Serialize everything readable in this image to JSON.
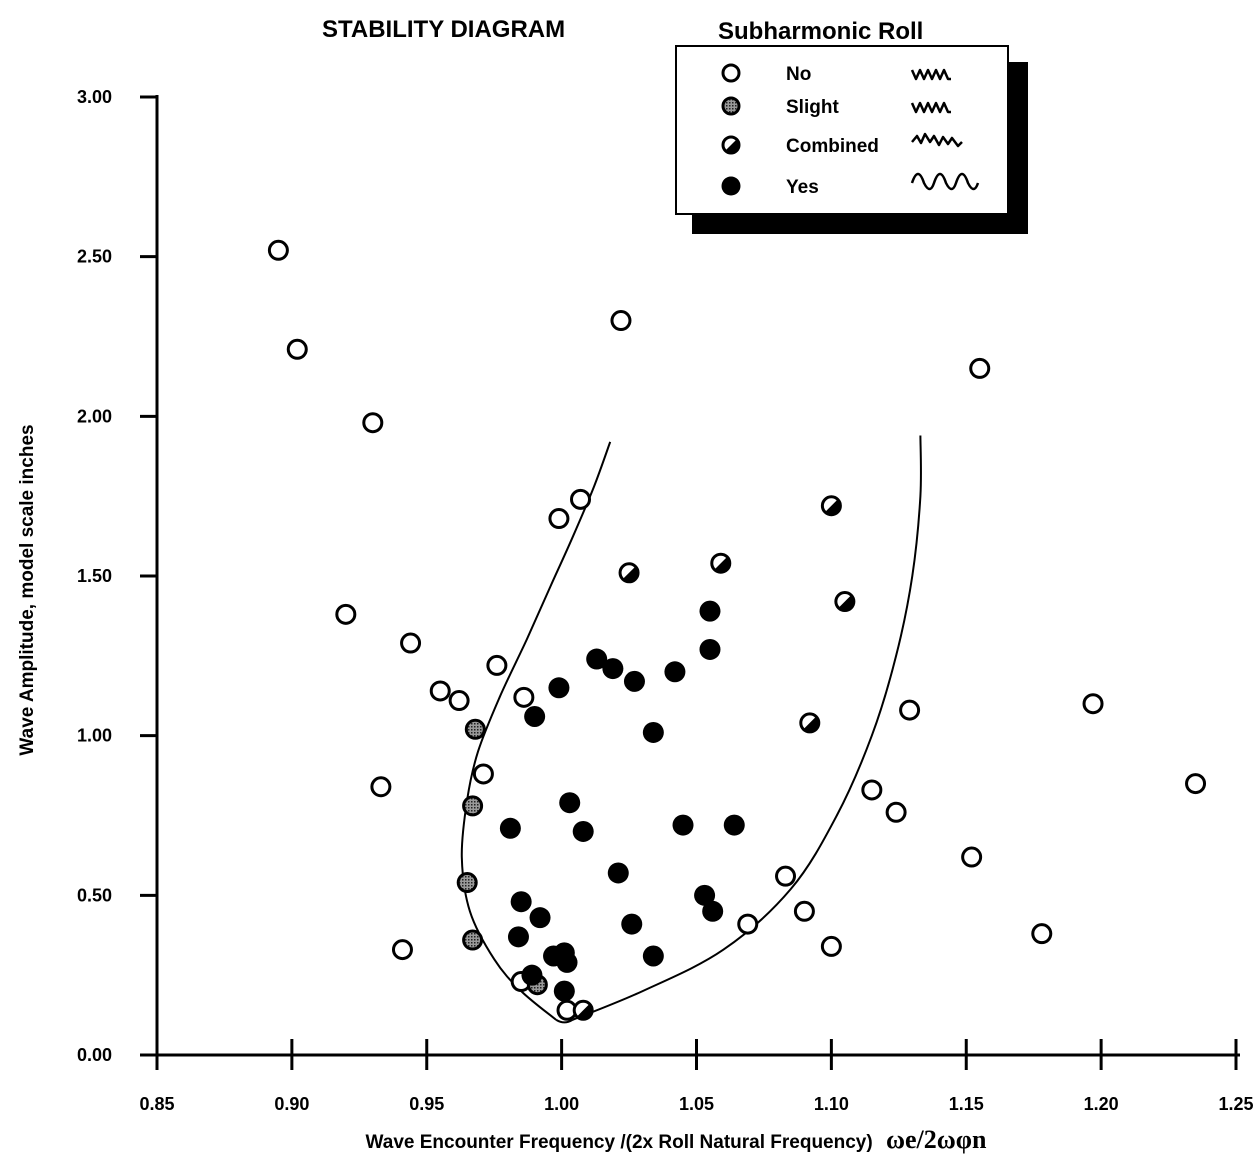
{
  "chart_data": {
    "type": "scatter",
    "title": "STABILITY DIAGRAM",
    "xlabel": "Wave Encounter Frequency /(2x Roll Natural Frequency)",
    "xlabel_symbol": "ωe/2ωφn",
    "ylabel": "Wave Amplitude,  model scale inches",
    "xlim": [
      0.85,
      1.25
    ],
    "ylim": [
      0.0,
      3.0
    ],
    "x_ticks": [
      "0.85",
      "0.90",
      "0.95",
      "1.00",
      "1.05",
      "1.10",
      "1.15",
      "1.20",
      "1.25"
    ],
    "y_ticks": [
      "0.00",
      "0.50",
      "1.00",
      "1.50",
      "2.00",
      "2.50",
      "3.00"
    ],
    "grid": false,
    "legend": {
      "title": "Subharmonic Roll",
      "placement": "top-right",
      "entries": [
        {
          "key": "no",
          "label": "No",
          "wave": "fast"
        },
        {
          "key": "slight",
          "label": "Slight",
          "wave": "fast"
        },
        {
          "key": "combined",
          "label": "Combined",
          "wave": "mixed"
        },
        {
          "key": "yes",
          "label": "Yes",
          "wave": "slow"
        }
      ]
    },
    "series": [
      {
        "name": "No",
        "marker": "open-circle",
        "points": [
          [
            0.895,
            2.52
          ],
          [
            0.902,
            2.21
          ],
          [
            0.93,
            1.98
          ],
          [
            1.022,
            2.3
          ],
          [
            1.155,
            2.15
          ],
          [
            0.92,
            1.38
          ],
          [
            0.944,
            1.29
          ],
          [
            0.955,
            1.14
          ],
          [
            0.962,
            1.11
          ],
          [
            0.976,
            1.22
          ],
          [
            0.986,
            1.12
          ],
          [
            0.999,
            1.68
          ],
          [
            1.007,
            1.74
          ],
          [
            0.971,
            0.88
          ],
          [
            0.933,
            0.84
          ],
          [
            0.941,
            0.33
          ],
          [
            0.985,
            0.23
          ],
          [
            1.002,
            0.14
          ],
          [
            1.069,
            0.41
          ],
          [
            1.083,
            0.56
          ],
          [
            1.09,
            0.45
          ],
          [
            1.1,
            0.34
          ],
          [
            1.115,
            0.83
          ],
          [
            1.124,
            0.76
          ],
          [
            1.129,
            1.08
          ],
          [
            1.152,
            0.62
          ],
          [
            1.178,
            0.38
          ],
          [
            1.197,
            1.1
          ],
          [
            1.235,
            0.85
          ]
        ]
      },
      {
        "name": "Slight",
        "marker": "hatched-circle",
        "points": [
          [
            0.968,
            1.02
          ],
          [
            0.967,
            0.78
          ],
          [
            0.965,
            0.54
          ],
          [
            0.967,
            0.36
          ],
          [
            0.991,
            0.22
          ]
        ]
      },
      {
        "name": "Combined",
        "marker": "half-filled-circle",
        "points": [
          [
            1.025,
            1.51
          ],
          [
            1.059,
            1.54
          ],
          [
            1.1,
            1.72
          ],
          [
            1.105,
            1.42
          ],
          [
            1.092,
            1.04
          ],
          [
            1.008,
            0.14
          ]
        ]
      },
      {
        "name": "Yes",
        "marker": "filled-circle",
        "points": [
          [
            0.999,
            1.15
          ],
          [
            0.99,
            1.06
          ],
          [
            1.013,
            1.24
          ],
          [
            1.019,
            1.21
          ],
          [
            1.027,
            1.17
          ],
          [
            1.042,
            1.2
          ],
          [
            1.034,
            1.01
          ],
          [
            1.055,
            1.39
          ],
          [
            1.055,
            1.27
          ],
          [
            0.981,
            0.71
          ],
          [
            1.003,
            0.79
          ],
          [
            1.008,
            0.7
          ],
          [
            1.045,
            0.72
          ],
          [
            1.064,
            0.72
          ],
          [
            1.021,
            0.57
          ],
          [
            0.985,
            0.48
          ],
          [
            0.992,
            0.43
          ],
          [
            0.984,
            0.37
          ],
          [
            1.026,
            0.41
          ],
          [
            1.053,
            0.5
          ],
          [
            1.056,
            0.45
          ],
          [
            0.997,
            0.31
          ],
          [
            1.001,
            0.32
          ],
          [
            1.002,
            0.29
          ],
          [
            1.034,
            0.31
          ],
          [
            0.989,
            0.25
          ],
          [
            1.001,
            0.2
          ]
        ]
      }
    ],
    "boundary_curves": [
      {
        "name": "left",
        "points": [
          [
            1.018,
            1.92
          ],
          [
            1.012,
            1.78
          ],
          [
            1.004,
            1.62
          ],
          [
            0.996,
            1.47
          ],
          [
            0.987,
            1.3
          ],
          [
            0.977,
            1.12
          ],
          [
            0.969,
            0.95
          ],
          [
            0.965,
            0.8
          ],
          [
            0.963,
            0.62
          ],
          [
            0.966,
            0.45
          ],
          [
            0.975,
            0.3
          ],
          [
            0.985,
            0.2
          ],
          [
            0.998,
            0.11
          ]
        ]
      },
      {
        "name": "right",
        "points": [
          [
            1.004,
            0.11
          ],
          [
            1.03,
            0.2
          ],
          [
            1.06,
            0.33
          ],
          [
            1.085,
            0.52
          ],
          [
            1.102,
            0.75
          ],
          [
            1.115,
            1.0
          ],
          [
            1.124,
            1.25
          ],
          [
            1.13,
            1.5
          ],
          [
            1.133,
            1.75
          ],
          [
            1.133,
            1.94
          ]
        ]
      }
    ]
  }
}
